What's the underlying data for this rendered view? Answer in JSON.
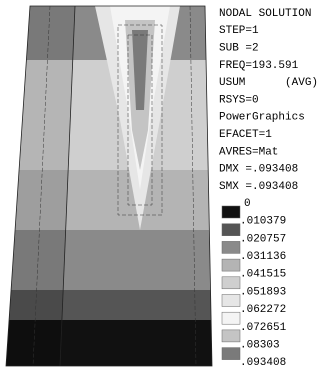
{
  "info_lines": [
    "NODAL SOLUTION",
    "STEP=1",
    "SUB =2",
    "FREQ=193.591",
    "USUM      (AVG)",
    "RSYS=0",
    "PowerGraphics",
    "EFACET=1",
    "AVRES=Mat",
    "DMX =.093408",
    "SMX =.093408"
  ],
  "legend": {
    "labels": [
      "0",
      ".010379",
      ".020757",
      ".031136",
      ".041515",
      ".051893",
      ".062272",
      ".072651",
      ".08303",
      ".093408"
    ],
    "colors": [
      "#111111",
      "#555555",
      "#8a8a8a",
      "#b4b4b4",
      "#cfcfcf",
      "#e6e6e6",
      "#f4f4f4",
      "#c4c4c4",
      "#7a7a7a"
    ]
  }
}
